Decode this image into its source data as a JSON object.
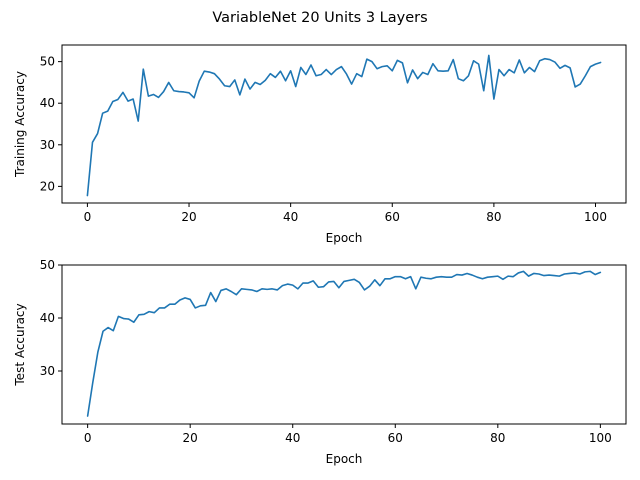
{
  "title": "VariableNet 20 Units 3 Layers",
  "colors": {
    "series": "#1f77b4",
    "axes": "#000000",
    "background": "#ffffff"
  },
  "chart_data": [
    {
      "type": "line",
      "xlabel": "Epoch",
      "ylabel": "Training Accuracy",
      "xlim": [
        -5,
        106
      ],
      "ylim": [
        16,
        54
      ],
      "xticks": [
        0,
        20,
        40,
        60,
        80,
        100
      ],
      "yticks": [
        20,
        30,
        40,
        50
      ],
      "grid": false,
      "series": [
        {
          "x": [
            0,
            1,
            2,
            3,
            4,
            5,
            6,
            7,
            8,
            9,
            10,
            11,
            12,
            13,
            14,
            15,
            16,
            17,
            18,
            19,
            20,
            21,
            22,
            23,
            24,
            25,
            26,
            27,
            28,
            29,
            30,
            31,
            32,
            33,
            34,
            35,
            36,
            37,
            38,
            39,
            40,
            41,
            42,
            43,
            44,
            45,
            46,
            47,
            48,
            49,
            50,
            51,
            52,
            53,
            54,
            55,
            56,
            57,
            58,
            59,
            60,
            61,
            62,
            63,
            64,
            65,
            66,
            67,
            68,
            69,
            70,
            71,
            72,
            73,
            74,
            75,
            76,
            77,
            78,
            79,
            80,
            81,
            82,
            83,
            84,
            85,
            86,
            87,
            88,
            89,
            90,
            91,
            92,
            93,
            94,
            95,
            96,
            97,
            98,
            99,
            100,
            101
          ],
          "values": [
            17.8,
            30.6,
            32.7,
            37.6,
            38.1,
            40.4,
            40.9,
            42.6,
            40.5,
            41.0,
            35.7,
            48.2,
            41.7,
            42.1,
            41.4,
            42.8,
            45.0,
            43.0,
            42.8,
            42.7,
            42.5,
            41.3,
            45.3,
            47.7,
            47.5,
            47.1,
            45.8,
            44.2,
            44.0,
            45.6,
            42.0,
            45.8,
            43.4,
            45.0,
            44.5,
            45.5,
            47.1,
            46.2,
            47.7,
            45.4,
            47.8,
            44.0,
            48.6,
            46.9,
            49.2,
            46.6,
            46.9,
            48.1,
            46.9,
            48.1,
            48.8,
            47.0,
            44.6,
            47.1,
            46.4,
            50.6,
            50.0,
            48.3,
            48.8,
            49.0,
            47.8,
            50.3,
            49.7,
            44.9,
            48.0,
            45.9,
            47.4,
            46.9,
            49.5,
            47.8,
            47.7,
            47.8,
            50.5,
            45.9,
            45.4,
            46.6,
            50.2,
            49.4,
            43.0,
            51.5,
            41.0,
            48.1,
            46.6,
            48.1,
            47.3,
            50.4,
            47.3,
            48.6,
            47.6,
            50.2,
            50.7,
            50.5,
            49.9,
            48.4,
            49.1,
            48.5,
            43.9,
            44.6,
            46.6,
            48.8,
            49.4,
            49.8
          ]
        }
      ]
    },
    {
      "type": "line",
      "xlabel": "Epoch",
      "ylabel": "Test Accuracy",
      "xlim": [
        -5,
        105
      ],
      "ylim": [
        20,
        50
      ],
      "xticks": [
        0,
        20,
        40,
        60,
        80,
        100
      ],
      "yticks": [
        30,
        40,
        50
      ],
      "grid": false,
      "series": [
        {
          "x": [
            0,
            1,
            2,
            3,
            4,
            5,
            6,
            7,
            8,
            9,
            10,
            11,
            12,
            13,
            14,
            15,
            16,
            17,
            18,
            19,
            20,
            21,
            22,
            23,
            24,
            25,
            26,
            27,
            28,
            29,
            30,
            31,
            32,
            33,
            34,
            35,
            36,
            37,
            38,
            39,
            40,
            41,
            42,
            43,
            44,
            45,
            46,
            47,
            48,
            49,
            50,
            51,
            52,
            53,
            54,
            55,
            56,
            57,
            58,
            59,
            60,
            61,
            62,
            63,
            64,
            65,
            66,
            67,
            68,
            69,
            70,
            71,
            72,
            73,
            74,
            75,
            76,
            77,
            78,
            79,
            80,
            81,
            82,
            83,
            84,
            85,
            86,
            87,
            88,
            89,
            90,
            91,
            92,
            93,
            94,
            95,
            96,
            97,
            98,
            99,
            100
          ],
          "values": [
            21.5,
            27.8,
            33.6,
            37.5,
            38.2,
            37.6,
            40.3,
            39.9,
            39.8,
            39.2,
            40.6,
            40.7,
            41.2,
            41.0,
            41.9,
            41.9,
            42.6,
            42.6,
            43.4,
            43.8,
            43.5,
            41.9,
            42.3,
            42.4,
            44.8,
            43.1,
            45.2,
            45.5,
            45.0,
            44.4,
            45.5,
            45.4,
            45.3,
            45.0,
            45.5,
            45.4,
            45.5,
            45.3,
            46.1,
            46.4,
            46.2,
            45.5,
            46.6,
            46.6,
            47.0,
            45.8,
            45.9,
            46.8,
            46.9,
            45.7,
            46.9,
            47.1,
            47.3,
            46.7,
            45.3,
            46.0,
            47.2,
            46.1,
            47.4,
            47.4,
            47.8,
            47.8,
            47.4,
            47.8,
            45.5,
            47.7,
            47.5,
            47.4,
            47.7,
            47.8,
            47.7,
            47.7,
            48.2,
            48.1,
            48.4,
            48.1,
            47.7,
            47.4,
            47.7,
            47.8,
            47.9,
            47.3,
            47.9,
            47.8,
            48.5,
            48.8,
            47.9,
            48.4,
            48.3,
            48.0,
            48.1,
            48.0,
            47.9,
            48.3,
            48.4,
            48.5,
            48.3,
            48.7,
            48.8,
            48.2,
            48.6
          ]
        }
      ]
    }
  ]
}
